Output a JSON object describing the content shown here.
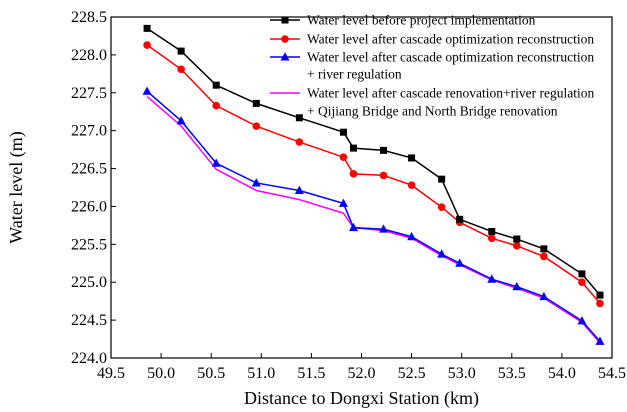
{
  "chart_data": {
    "type": "line",
    "xlabel": "Distance to Dongxi Station (km)",
    "ylabel": "Water level (m)",
    "xlim": [
      49.5,
      54.5
    ],
    "ylim": [
      224.0,
      228.5
    ],
    "xticks": [
      "49.5",
      "50.0",
      "50.5",
      "51.0",
      "51.5",
      "52.0",
      "52.5",
      "53.0",
      "53.5",
      "54.0",
      "54.5"
    ],
    "yticks": [
      "224.0",
      "224.5",
      "225.0",
      "225.5",
      "226.0",
      "226.5",
      "227.0",
      "227.5",
      "228.0",
      "228.5"
    ],
    "legend_position": "top-right",
    "series": [
      {
        "name": "Water level before project implementation",
        "color": "#000000",
        "marker": "square",
        "x": [
          49.86,
          50.2,
          50.55,
          50.95,
          51.38,
          51.82,
          51.92,
          52.22,
          52.5,
          52.8,
          52.98,
          53.3,
          53.55,
          53.82,
          54.2,
          54.38
        ],
        "y": [
          228.35,
          228.05,
          227.6,
          227.36,
          227.17,
          226.98,
          226.77,
          226.74,
          226.64,
          226.36,
          225.83,
          225.67,
          225.57,
          225.44,
          225.11,
          224.83
        ]
      },
      {
        "name": "Water level after cascade optimization reconstruction",
        "color": "#ff0000",
        "marker": "circle",
        "x": [
          49.86,
          50.2,
          50.55,
          50.95,
          51.38,
          51.82,
          51.92,
          52.22,
          52.5,
          52.8,
          52.98,
          53.3,
          53.55,
          53.82,
          54.2,
          54.38
        ],
        "y": [
          228.13,
          227.81,
          227.33,
          227.06,
          226.85,
          226.65,
          226.43,
          226.41,
          226.28,
          225.99,
          225.79,
          225.58,
          225.48,
          225.34,
          225.0,
          224.72
        ]
      },
      {
        "name": "Water level after cascade optimization reconstruction + river regulation",
        "legend_lines": [
          "Water level after cascade optimization reconstruction",
          "+ river regulation"
        ],
        "color": "#0000ff",
        "marker": "triangle",
        "x": [
          49.86,
          50.2,
          50.55,
          50.95,
          51.38,
          51.82,
          51.92,
          52.22,
          52.5,
          52.8,
          52.98,
          53.3,
          53.55,
          53.82,
          54.2,
          54.38
        ],
        "y": [
          227.52,
          227.13,
          226.57,
          226.31,
          226.21,
          226.04,
          225.72,
          225.7,
          225.6,
          225.37,
          225.25,
          225.04,
          224.94,
          224.81,
          224.49,
          224.22
        ]
      },
      {
        "name": "Water level after cascade renovation+river regulation + Qijiang Bridge and North Bridge renovation",
        "legend_lines": [
          "Water level after cascade renovation+river regulation",
          "+ Qijiang Bridge and North Bridge renovation"
        ],
        "color": "#ff00ff",
        "marker": "none",
        "x": [
          49.86,
          50.2,
          50.55,
          50.95,
          51.38,
          51.82,
          51.92,
          52.22,
          52.5,
          52.8,
          52.98,
          53.3,
          53.55,
          53.82,
          54.2,
          54.38
        ],
        "y": [
          227.45,
          227.06,
          226.49,
          226.21,
          226.09,
          225.91,
          225.72,
          225.68,
          225.58,
          225.35,
          225.23,
          225.03,
          224.92,
          224.79,
          224.47,
          224.2
        ]
      }
    ]
  }
}
